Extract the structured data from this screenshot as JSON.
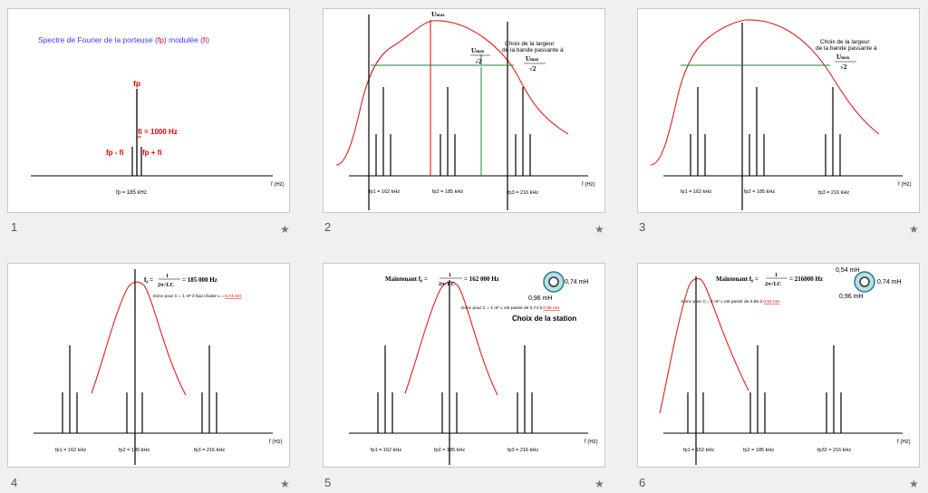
{
  "slides": [
    {
      "number": "1",
      "star": "★",
      "title_a": "Spectre de Fourier de la porteuse (",
      "title_b": "fp",
      "title_c": ") modulée (",
      "title_d": "fi",
      "title_e": ")",
      "fp": "fp",
      "fi_eq": "fi = 1000 Hz",
      "fp_minus": "fp - fi",
      "fp_plus": "fp + fi",
      "f_axis": "f (Hz)",
      "fp_val": "fp = 185 kHz"
    },
    {
      "number": "2",
      "star": "★",
      "umax": "U",
      "umax_sub": "max",
      "sqrt2": "√2",
      "choix_1": "Choix de la largeur",
      "choix_2": "de la bande passante à",
      "fp1": "fp1 = 162 kHz",
      "fp2": "fp2 = 185 kHz",
      "fp3": "fp3 = 216 kHz",
      "f_axis": "f (Hz)"
    },
    {
      "number": "3",
      "star": "★",
      "choix_1": "Choix de la largeur",
      "choix_2": "de la bande passante à",
      "umax": "U",
      "umax_sub": "max",
      "sqrt2": "√2",
      "fp1": "fp1 = 162 kHz",
      "fp2": "fp2 = 185 kHz",
      "fp3": "fp3 = 216 kHz",
      "f_axis": "f (Hz)"
    },
    {
      "number": "4",
      "star": "★",
      "formula_lhs": "f₀ =",
      "formula_num": "1",
      "formula_den": "2π√LC",
      "formula_rhs": "= 185 000 Hz",
      "note_a": "Donc pour C = 1 nF il faut choisir L = ",
      "note_b": "0,74 mH",
      "fp1": "fp1 = 162 kHz",
      "fp2": "fp2 = 185 kHz",
      "fp3": "fp3 = 216 kHz",
      "f_axis": "f (Hz)"
    },
    {
      "number": "5",
      "star": "★",
      "formula_lhs": "Maintenant f₀ =",
      "formula_num": "1",
      "formula_den": "2π√LC",
      "formula_rhs": "= 162 000 Hz",
      "coil_right": "0,74 mH",
      "coil_below": "0,96 mH",
      "note_a": "Donc pour C = 1 nF L est passé de 0,74 à ",
      "note_b": "0,96 mH",
      "station": "Choix de la station",
      "fp1": "fp1 = 162 kHz",
      "fp2": "fp2 = 185 kHz",
      "fp3": "fp3 = 216 kHz",
      "f_axis": "f (Hz)"
    },
    {
      "number": "6",
      "star": "★",
      "formula_lhs": "Maintenant f₀ =",
      "formula_num": "1",
      "formula_den": "2π√LC",
      "formula_rhs": "= 216000 Hz",
      "coil_top": "0,54 mH",
      "coil_right": "0,74 mH",
      "coil_below": "0,96 mH",
      "note_a": "Donc pour C = 1 nF L est passé de 0,96 à ",
      "note_b": "0,54 mH",
      "fp1": "fp1 = 162 kHz",
      "fp2": "fp2 = 185 kHz",
      "fp3": "fp32 = 216 kHz",
      "f_axis": "f (Hz)"
    }
  ]
}
